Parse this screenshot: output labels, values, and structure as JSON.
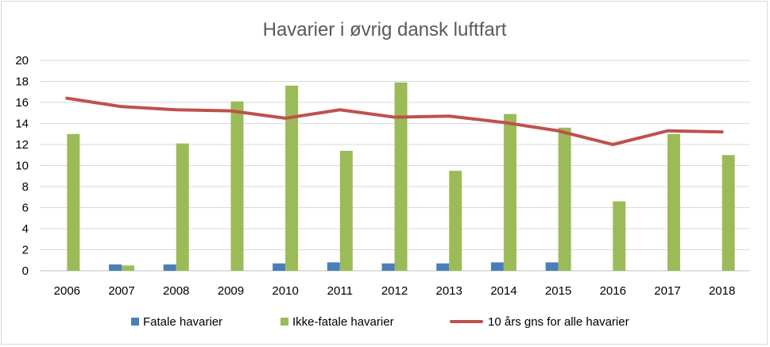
{
  "chart_data": {
    "type": "bar",
    "title": "Havarier i øvrig dansk luftfart",
    "xlabel": "",
    "ylabel": "",
    "categories": [
      "2006",
      "2007",
      "2008",
      "2009",
      "2010",
      "2011",
      "2012",
      "2013",
      "2014",
      "2015",
      "2016",
      "2017",
      "2018"
    ],
    "ylim": [
      0,
      20
    ],
    "yticks": [
      0,
      2,
      4,
      6,
      8,
      10,
      12,
      14,
      16,
      18,
      20
    ],
    "grid": true,
    "legend_position": "bottom",
    "series": [
      {
        "name": "Fatale havarier",
        "type": "bar",
        "color": "#4a7ebb",
        "values": [
          0,
          0.6,
          0.6,
          0,
          0.7,
          0.8,
          0.7,
          0.7,
          0.8,
          0.8,
          0,
          0,
          0
        ]
      },
      {
        "name": "Ikke-fatale havarier",
        "type": "bar",
        "color": "#9bbb59",
        "values": [
          13,
          0.5,
          12.1,
          16.1,
          17.6,
          11.4,
          17.9,
          9.5,
          14.9,
          13.6,
          6.6,
          13,
          11
        ]
      },
      {
        "name": "10 års gns for alle havarier",
        "type": "line",
        "color": "#c0504d",
        "values": [
          16.4,
          15.6,
          15.3,
          15.2,
          14.5,
          15.3,
          14.6,
          14.7,
          14.1,
          13.3,
          12,
          13.3,
          13.2
        ]
      }
    ]
  }
}
